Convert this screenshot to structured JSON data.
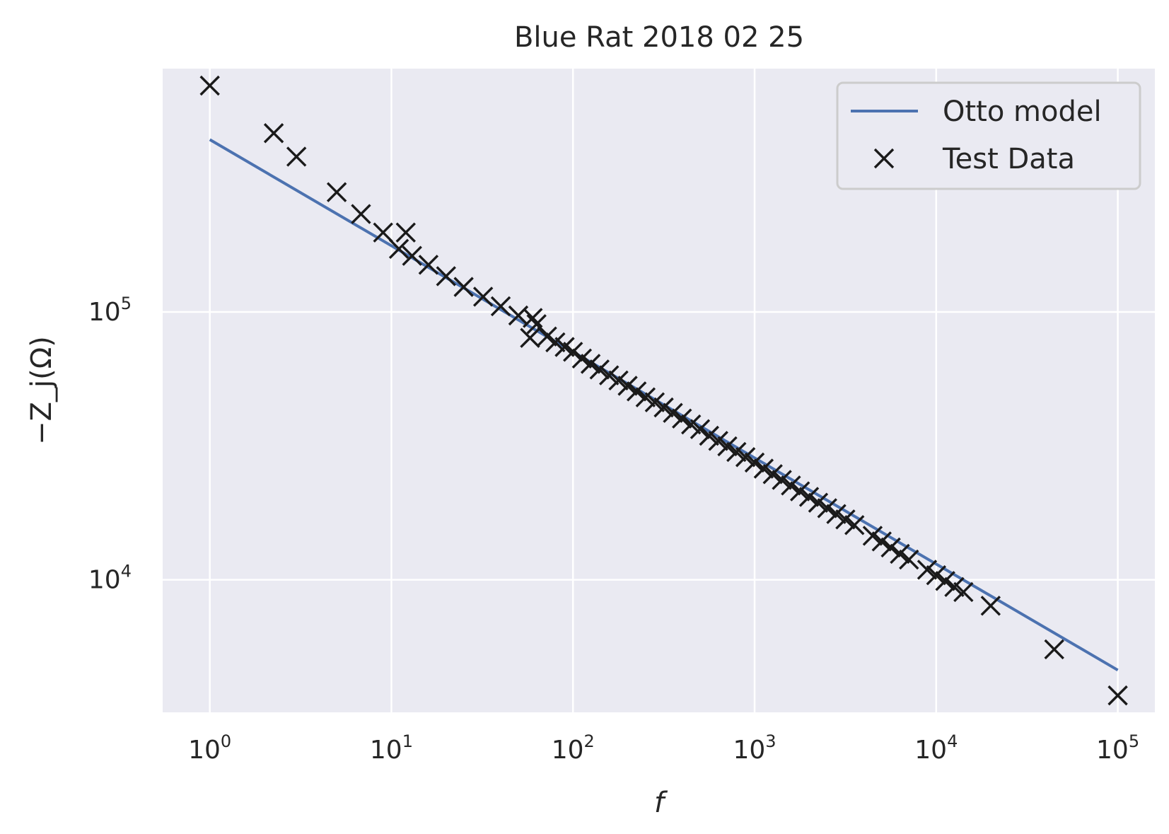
{
  "chart_data": {
    "type": "scatter",
    "title": "Blue Rat 2018 02 25",
    "xlabel": "f",
    "ylabel": "−Z_j(Ω)",
    "xscale": "log",
    "yscale": "log",
    "xlim": [
      0.55,
      160000
    ],
    "ylim": [
      3200,
      810000
    ],
    "grid": true,
    "legend": "top-right",
    "x_ticks": [
      {
        "value": 1,
        "base": "10",
        "exp": "0"
      },
      {
        "value": 10,
        "base": "10",
        "exp": "1"
      },
      {
        "value": 100,
        "base": "10",
        "exp": "2"
      },
      {
        "value": 1000,
        "base": "10",
        "exp": "3"
      },
      {
        "value": 10000,
        "base": "10",
        "exp": "4"
      },
      {
        "value": 100000,
        "base": "10",
        "exp": "5"
      }
    ],
    "y_ticks": [
      {
        "value": 10000,
        "base": "10",
        "exp": "4"
      },
      {
        "value": 100000,
        "base": "10",
        "exp": "5"
      }
    ],
    "series": [
      {
        "name": "Otto model",
        "kind": "line",
        "color": "#4c72b0",
        "x": [
          1,
          100000
        ],
        "y": [
          440000,
          4600
        ]
      },
      {
        "name": "Test Data",
        "kind": "marker",
        "marker": "x",
        "color": "#1a1a1a",
        "x": [
          1,
          2.25,
          3,
          5,
          6.8,
          9,
          11,
          12,
          13,
          16,
          20,
          25,
          32,
          40,
          50,
          58,
          60,
          63,
          72,
          80,
          90,
          100,
          112,
          125,
          140,
          158,
          178,
          200,
          224,
          251,
          282,
          316,
          355,
          398,
          447,
          501,
          562,
          631,
          708,
          794,
          891,
          1000,
          1122,
          1259,
          1413,
          1585,
          1778,
          1995,
          2239,
          2512,
          2818,
          3162,
          3548,
          4467,
          5012,
          5623,
          6310,
          7079,
          8913,
          10000,
          11220,
          12589,
          14125,
          19953,
          44668,
          100000
        ],
        "y": [
          700000,
          465000,
          380000,
          280000,
          232000,
          198000,
          172000,
          198000,
          162000,
          150000,
          136000,
          124000,
          114000,
          105000,
          97000,
          80000,
          95000,
          90000,
          81000,
          77000,
          74000,
          71000,
          67000,
          64000,
          61000,
          58000,
          55500,
          53000,
          50500,
          48000,
          46000,
          44000,
          42000,
          40000,
          38000,
          36500,
          34500,
          33000,
          31500,
          30000,
          28700,
          27400,
          26000,
          24800,
          23600,
          22500,
          21400,
          20400,
          19400,
          18500,
          17600,
          16800,
          16000,
          14600,
          13900,
          13200,
          12500,
          11900,
          10900,
          10400,
          9900,
          9400,
          9000,
          8000,
          5500,
          3700
        ]
      }
    ]
  }
}
